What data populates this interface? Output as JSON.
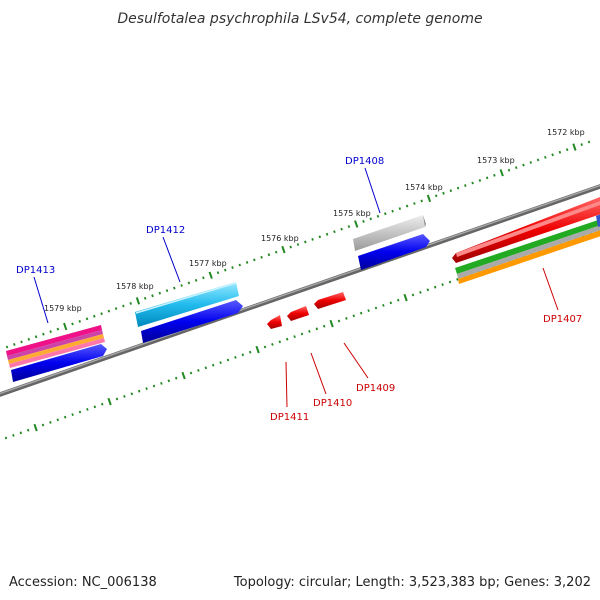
{
  "title": "Desulfotalea psychrophila LSv54, complete genome",
  "accession": "Accession: NC_006138",
  "topology": "Topology: circular; Length: 3,523,383 bp; Genes: 3,202",
  "colors": {
    "backbone": "#888888",
    "tick": "#228822",
    "forward_label": "#0000cc",
    "reverse_label": "#cc0000",
    "gene_blue": "#0000ee",
    "gene_red": "#ee0000"
  },
  "kbp_labels": [
    "1572 kbp",
    "1573 kbp",
    "1574 kbp",
    "1575 kbp",
    "1576 kbp",
    "1577 kbp",
    "1578 kbp",
    "1579 kbp"
  ],
  "forward_genes": [
    "DP1408",
    "DP1412",
    "DP1413"
  ],
  "reverse_genes": [
    "DP1407",
    "DP1409",
    "DP1410",
    "DP1411"
  ]
}
